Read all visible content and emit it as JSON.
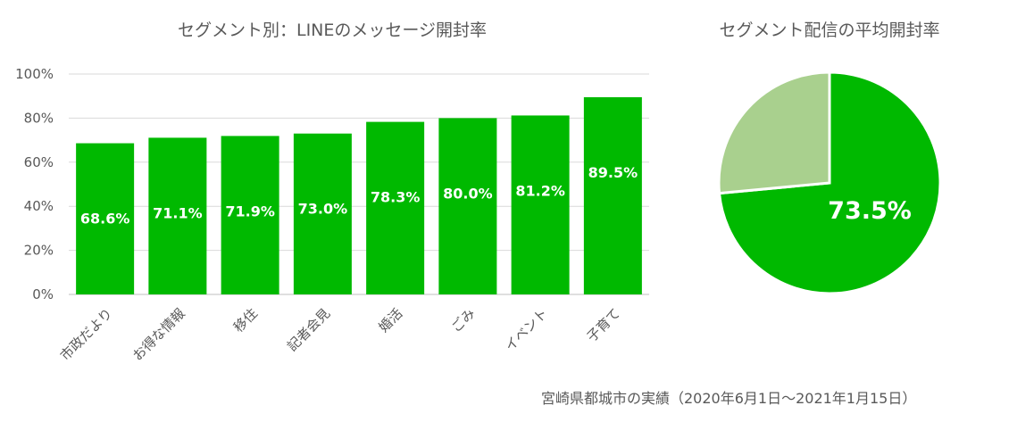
{
  "chart_data": [
    {
      "type": "bar",
      "title": "セグメント別：LINEのメッセージ開封率",
      "categories": [
        "市政だより",
        "お得な情報",
        "移住",
        "記者会見",
        "婚活",
        "ごみ",
        "イベント",
        "子育て"
      ],
      "values": [
        68.6,
        71.1,
        71.9,
        73.0,
        78.3,
        80.0,
        81.2,
        89.5
      ],
      "data_labels": [
        "68.6%",
        "71.1%",
        "71.9%",
        "73.0%",
        "78.3%",
        "80.0%",
        "81.2%",
        "89.5%"
      ],
      "y_ticks": [
        "0%",
        "20%",
        "40%",
        "60%",
        "80%",
        "100%"
      ],
      "ylim": [
        0,
        100
      ],
      "grid": true,
      "color": "#00B900"
    },
    {
      "type": "pie",
      "title": "セグメント配信の平均開封率",
      "values": [
        73.5,
        26.5
      ],
      "data_label": "73.5%",
      "colors": [
        "#00B900",
        "#A9D08E"
      ]
    }
  ],
  "footnote": "宮崎県都城市の実績（2020年6月1日～2021年1月15日）"
}
